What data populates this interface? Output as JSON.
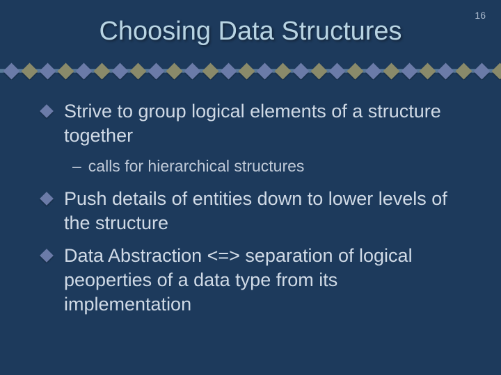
{
  "page_number": "16",
  "title": "Choosing Data Structures",
  "divider": {
    "diamond_count": 28,
    "colors": [
      "#6b7ba8",
      "#8a8a6a"
    ]
  },
  "bullets": [
    {
      "text": "Strive to group logical elements of a structure together",
      "sub": [
        "calls for hierarchical structures"
      ]
    },
    {
      "text": "Push details of entities down to lower levels of the structure",
      "sub": []
    },
    {
      "text": "Data Abstraction <=> separation of logical peoperties of a data type from its implementation",
      "sub": []
    }
  ],
  "colors": {
    "background": "#1d3a5c",
    "title_color": "#b8d4e3",
    "body_text": "#d0dae6",
    "sub_text": "#c0cad8",
    "bullet_diamond": "#6b7ba8"
  }
}
